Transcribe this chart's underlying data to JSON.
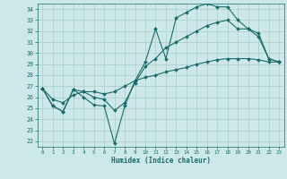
{
  "xlabel": "Humidex (Indice chaleur)",
  "xlim": [
    -0.5,
    23.5
  ],
  "ylim": [
    21.5,
    34.5
  ],
  "xticks": [
    0,
    1,
    2,
    3,
    4,
    5,
    6,
    7,
    8,
    9,
    10,
    11,
    12,
    13,
    14,
    15,
    16,
    17,
    18,
    19,
    20,
    21,
    22,
    23
  ],
  "yticks": [
    22,
    23,
    24,
    25,
    26,
    27,
    28,
    29,
    30,
    31,
    32,
    33,
    34
  ],
  "bg_color": "#cde8e8",
  "grid_color": "#aacccc",
  "line_color": "#1a6b6b",
  "line1_x": [
    0,
    1,
    2,
    3,
    4,
    5,
    6,
    7,
    8,
    9,
    10,
    11,
    12,
    13,
    14,
    15,
    16,
    17,
    18,
    19,
    20,
    21,
    22,
    23
  ],
  "line1_y": [
    26.8,
    25.2,
    24.7,
    26.7,
    26.0,
    25.3,
    25.2,
    21.8,
    25.2,
    27.5,
    29.2,
    32.2,
    29.5,
    33.2,
    33.7,
    34.2,
    34.5,
    34.2,
    34.2,
    33.0,
    32.2,
    31.8,
    29.5,
    29.2
  ],
  "line2_x": [
    0,
    1,
    2,
    3,
    4,
    5,
    6,
    7,
    8,
    9,
    10,
    11,
    12,
    13,
    14,
    15,
    16,
    17,
    18,
    19,
    20,
    21,
    22,
    23
  ],
  "line2_y": [
    26.8,
    25.2,
    24.7,
    26.7,
    26.5,
    26.0,
    25.8,
    24.8,
    25.5,
    27.3,
    28.8,
    29.5,
    30.5,
    31.0,
    31.5,
    32.0,
    32.5,
    32.8,
    33.0,
    32.2,
    32.2,
    31.5,
    29.5,
    29.2
  ],
  "line3_x": [
    0,
    1,
    2,
    3,
    4,
    5,
    6,
    7,
    8,
    9,
    10,
    11,
    12,
    13,
    14,
    15,
    16,
    17,
    18,
    19,
    20,
    21,
    22,
    23
  ],
  "line3_y": [
    26.8,
    25.8,
    25.5,
    26.2,
    26.5,
    26.5,
    26.3,
    26.5,
    27.0,
    27.5,
    27.8,
    28.0,
    28.3,
    28.5,
    28.7,
    29.0,
    29.2,
    29.4,
    29.5,
    29.5,
    29.5,
    29.4,
    29.2,
    29.2
  ]
}
